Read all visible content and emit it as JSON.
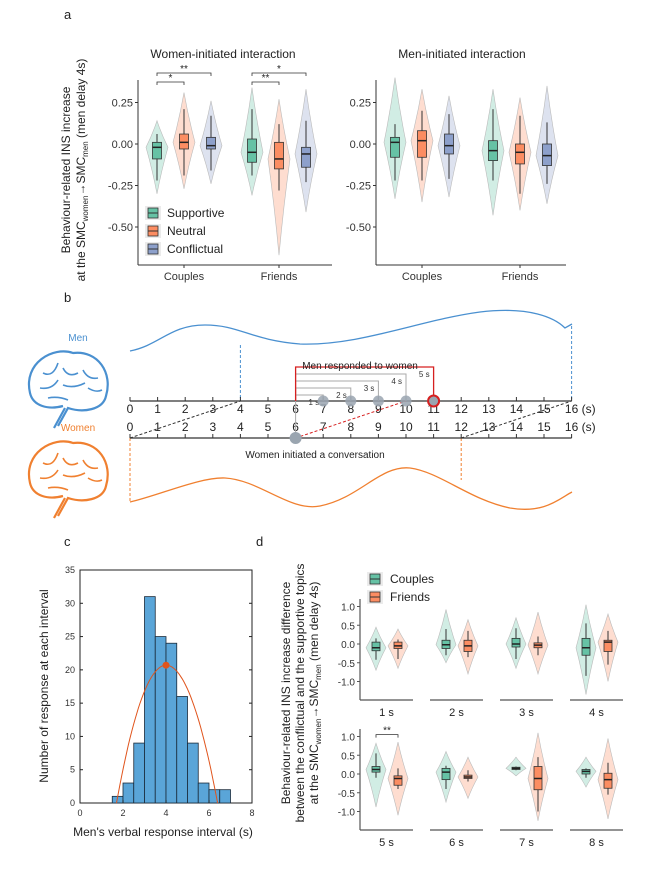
{
  "panel_labels": {
    "a": "a",
    "b": "b",
    "c": "c",
    "d": "d"
  },
  "colors": {
    "supportive": "#66c2a5",
    "neutral": "#fc8d62",
    "conflictual": "#8da0cb",
    "men": "#4a90d0",
    "women": "#f08030",
    "hist": "#5aa5d8",
    "fit": "#e0541c",
    "highlight": "#d62020"
  },
  "chart_data": [
    {
      "type": "violin",
      "title": "Women-initiated interaction",
      "ylabel_line1": "Behaviour-related INS increase",
      "ylabel_line2": {
        "pre": "at the SMC",
        "sub1": "women",
        "arrow": "→SMC",
        "sub2": "men",
        "post": " (men delay 4s)"
      },
      "categories": [
        "Couples",
        "Friends"
      ],
      "yticks": [
        "0.25",
        "0.00",
        "-0.25",
        "-0.50"
      ],
      "ylim": [
        -0.7,
        0.38
      ],
      "legend": [
        "Supportive",
        "Neutral",
        "Conflictual"
      ],
      "series": [
        {
          "name": "Supportive",
          "groups": [
            {
              "q1": -0.09,
              "median": -0.02,
              "q3": 0.01,
              "wlo": -0.22,
              "whi": 0.06,
              "vlo": -0.3,
              "vhi": 0.14
            },
            {
              "q1": -0.11,
              "median": -0.05,
              "q3": 0.03,
              "wlo": -0.19,
              "whi": 0.21,
              "vlo": -0.31,
              "vhi": 0.34
            }
          ]
        },
        {
          "name": "Neutral",
          "groups": [
            {
              "q1": -0.03,
              "median": 0.01,
              "q3": 0.06,
              "wlo": -0.19,
              "whi": 0.21,
              "vlo": -0.27,
              "vhi": 0.31
            },
            {
              "q1": -0.15,
              "median": -0.09,
              "q3": 0.01,
              "wlo": -0.28,
              "whi": 0.12,
              "vlo": -0.67,
              "vhi": 0.27
            }
          ]
        },
        {
          "name": "Conflictual",
          "groups": [
            {
              "q1": -0.03,
              "median": -0.01,
              "q3": 0.04,
              "wlo": -0.16,
              "whi": 0.17,
              "vlo": -0.24,
              "vhi": 0.26
            },
            {
              "q1": -0.14,
              "median": -0.06,
              "q3": -0.02,
              "wlo": -0.23,
              "whi": 0.14,
              "vlo": -0.41,
              "vhi": 0.33
            }
          ]
        }
      ],
      "significance": [
        {
          "group": "Couples",
          "from": "Supportive",
          "to": "Neutral",
          "label": "*"
        },
        {
          "group": "Couples",
          "from": "Supportive",
          "to": "Conflictual",
          "label": "**"
        },
        {
          "group": "Friends",
          "from": "Supportive",
          "to": "Neutral",
          "label": "**"
        },
        {
          "group": "Friends",
          "from": "Supportive",
          "to": "Conflictual",
          "label": "*"
        }
      ]
    },
    {
      "type": "violin",
      "title": "Men-initiated interaction",
      "categories": [
        "Couples",
        "Friends"
      ],
      "yticks": [
        "0.25",
        "0.00",
        "-0.25",
        "-0.50"
      ],
      "ylim": [
        -0.7,
        0.38
      ],
      "series": [
        {
          "name": "Supportive",
          "groups": [
            {
              "q1": -0.08,
              "median": 0.01,
              "q3": 0.04,
              "wlo": -0.22,
              "whi": 0.12,
              "vlo": -0.33,
              "vhi": 0.4
            },
            {
              "q1": -0.1,
              "median": -0.04,
              "q3": 0.02,
              "wlo": -0.22,
              "whi": 0.21,
              "vlo": -0.43,
              "vhi": 0.33
            }
          ]
        },
        {
          "name": "Neutral",
          "groups": [
            {
              "q1": -0.08,
              "median": 0.02,
              "q3": 0.08,
              "wlo": -0.22,
              "whi": 0.2,
              "vlo": -0.35,
              "vhi": 0.33
            },
            {
              "q1": -0.12,
              "median": -0.05,
              "q3": 0.0,
              "wlo": -0.3,
              "whi": 0.17,
              "vlo": -0.4,
              "vhi": 0.28
            }
          ]
        },
        {
          "name": "Conflictual",
          "groups": [
            {
              "q1": -0.06,
              "median": -0.01,
              "q3": 0.06,
              "wlo": -0.21,
              "whi": 0.18,
              "vlo": -0.32,
              "vhi": 0.29
            },
            {
              "q1": -0.13,
              "median": -0.07,
              "q3": 0.0,
              "wlo": -0.24,
              "whi": 0.13,
              "vlo": -0.36,
              "vhi": 0.35
            }
          ]
        }
      ]
    },
    {
      "type": "bar",
      "xlabel": "Men's verbal response interval (s)",
      "ylabel": "Number of response at each interval",
      "xlim": [
        0,
        8
      ],
      "ylim": [
        0,
        35
      ],
      "xticks": [
        "0",
        "2",
        "4",
        "6",
        "8"
      ],
      "yticks": [
        "0",
        "5",
        "10",
        "15",
        "20",
        "25",
        "30",
        "35"
      ],
      "bin_starts": [
        1.5,
        2.0,
        2.5,
        3.0,
        3.5,
        4.0,
        4.5,
        5.0,
        5.5,
        6.0,
        6.5
      ],
      "bin_width": 0.5,
      "values": [
        1,
        3,
        9,
        31,
        25,
        24,
        16,
        9,
        3,
        2,
        2
      ],
      "fit_curve": {
        "peak_x": 4.0,
        "peak_y": 20.7,
        "zero_left": 1.7,
        "zero_right": 6.4
      }
    },
    {
      "type": "violin",
      "ylabel_line1": "Behaviour-related INS increase difference",
      "ylabel_line2": "between the conflictual and the supportive topics",
      "ylabel_line3": {
        "pre": "at the SMC",
        "sub1": "women",
        "arrow": "→SMC",
        "sub2": "men",
        "post": " (men delay 4s)"
      },
      "yticks": [
        "1.0",
        "0.5",
        "0.0",
        "-0.5",
        "-1.0"
      ],
      "ylim": [
        -1.4,
        1.2
      ],
      "legend": [
        "Couples",
        "Friends"
      ],
      "facets": [
        {
          "label": "1 s",
          "couples": {
            "q1": -0.18,
            "median": -0.1,
            "q3": 0.05,
            "wlo": -0.42,
            "whi": 0.15,
            "vlo": -0.7,
            "vhi": 0.45
          },
          "friends": {
            "q1": -0.12,
            "median": -0.05,
            "q3": 0.05,
            "wlo": -0.4,
            "whi": 0.12,
            "vlo": -0.65,
            "vhi": 0.4
          }
        },
        {
          "label": "2 s",
          "couples": {
            "q1": -0.12,
            "median": -0.02,
            "q3": 0.1,
            "wlo": -0.3,
            "whi": 0.4,
            "vlo": -0.5,
            "vhi": 0.92
          },
          "friends": {
            "q1": -0.2,
            "median": -0.05,
            "q3": 0.1,
            "wlo": -0.35,
            "whi": 0.35,
            "vlo": -0.8,
            "vhi": 0.65
          }
        },
        {
          "label": "3 s",
          "couples": {
            "q1": -0.08,
            "median": 0.0,
            "q3": 0.15,
            "wlo": -0.4,
            "whi": 0.42,
            "vlo": -0.65,
            "vhi": 0.7
          },
          "friends": {
            "q1": -0.1,
            "median": -0.03,
            "q3": 0.03,
            "wlo": -0.3,
            "whi": 0.2,
            "vlo": -0.8,
            "vhi": 0.85
          }
        },
        {
          "label": "4 s",
          "couples": {
            "q1": -0.3,
            "median": -0.1,
            "q3": 0.15,
            "wlo": -0.85,
            "whi": 0.55,
            "vlo": -1.35,
            "vhi": 1.05
          },
          "friends": {
            "q1": -0.2,
            "median": 0.05,
            "q3": 0.1,
            "wlo": -0.55,
            "whi": 0.35,
            "vlo": -1.0,
            "vhi": 0.8
          }
        },
        {
          "label": "5 s",
          "couples": {
            "q1": 0.05,
            "median": 0.12,
            "q3": 0.2,
            "wlo": -0.1,
            "whi": 0.55,
            "vlo": -0.88,
            "vhi": 0.82
          },
          "friends": {
            "q1": -0.3,
            "median": -0.12,
            "q3": -0.05,
            "wlo": -0.4,
            "whi": 0.15,
            "vlo": -1.1,
            "vhi": 0.85
          },
          "significance": "**"
        },
        {
          "label": "6 s",
          "couples": {
            "q1": -0.15,
            "median": 0.05,
            "q3": 0.15,
            "wlo": -0.4,
            "whi": 0.22,
            "vlo": -0.75,
            "vhi": 0.6
          },
          "friends": {
            "q1": -0.12,
            "median": -0.08,
            "q3": -0.03,
            "wlo": -0.2,
            "whi": 0.1,
            "vlo": -0.65,
            "vhi": 0.45
          }
        },
        {
          "label": "7 s",
          "couples": {
            "q1": 0.12,
            "median": 0.15,
            "q3": 0.18,
            "wlo": 0.1,
            "whi": 0.2,
            "vlo": -0.05,
            "vhi": 0.45
          },
          "friends": {
            "q1": -0.42,
            "median": -0.12,
            "q3": 0.2,
            "wlo": -1.0,
            "whi": 0.45,
            "vlo": -1.25,
            "vhi": 1.1
          }
        },
        {
          "label": "8 s",
          "couples": {
            "q1": 0.0,
            "median": 0.07,
            "q3": 0.12,
            "wlo": -0.1,
            "whi": 0.15,
            "vlo": -0.35,
            "vhi": 0.45
          },
          "friends": {
            "q1": -0.38,
            "median": -0.15,
            "q3": 0.02,
            "wlo": -0.55,
            "whi": 0.3,
            "vlo": -1.2,
            "vhi": 0.95
          }
        }
      ]
    }
  ],
  "schematic": {
    "men_label": "Men",
    "women_label": "Women",
    "men_responded": "Men responded to women",
    "women_initiated": "Women initiated a conversation",
    "axis_ticks": [
      "0",
      "1",
      "2",
      "3",
      "4",
      "5",
      "6",
      "7",
      "8",
      "9",
      "10",
      "11",
      "12",
      "13",
      "14",
      "15",
      "16"
    ],
    "axis_unit": "(s)",
    "delay_labels": [
      "1 s",
      "2 s",
      "3 s",
      "4 s",
      "5 s"
    ],
    "women_start": 6,
    "highlight_delay": 5
  }
}
